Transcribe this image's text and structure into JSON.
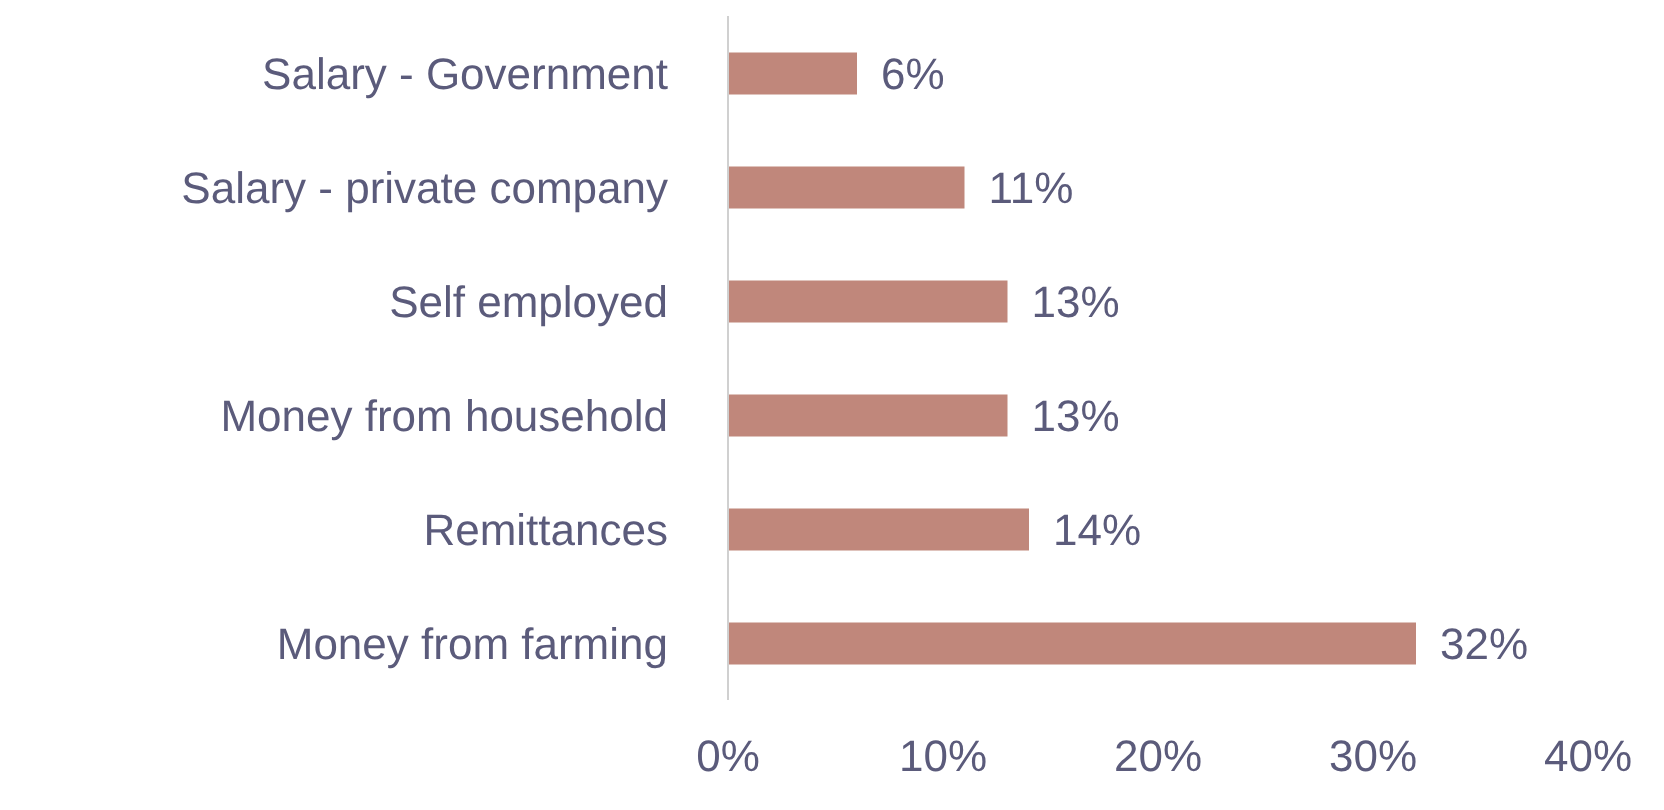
{
  "chart_data": {
    "type": "bar",
    "orientation": "horizontal",
    "categories": [
      "Salary - Government",
      "Salary - private company",
      "Self employed",
      "Money from household",
      "Remittances",
      "Money from farming"
    ],
    "values": [
      6,
      11,
      13,
      13,
      14,
      32
    ],
    "value_labels": [
      "6%",
      "11%",
      "13%",
      "13%",
      "14%",
      "32%"
    ],
    "color": "#c0877b",
    "xlim": [
      0,
      40
    ],
    "xticks": [
      {
        "value": 0,
        "label": "0%"
      },
      {
        "value": 10,
        "label": "10%"
      },
      {
        "value": 20,
        "label": "20%"
      },
      {
        "value": 30,
        "label": "30%"
      },
      {
        "value": 40,
        "label": "40%"
      }
    ],
    "grid": false,
    "legend": false
  }
}
